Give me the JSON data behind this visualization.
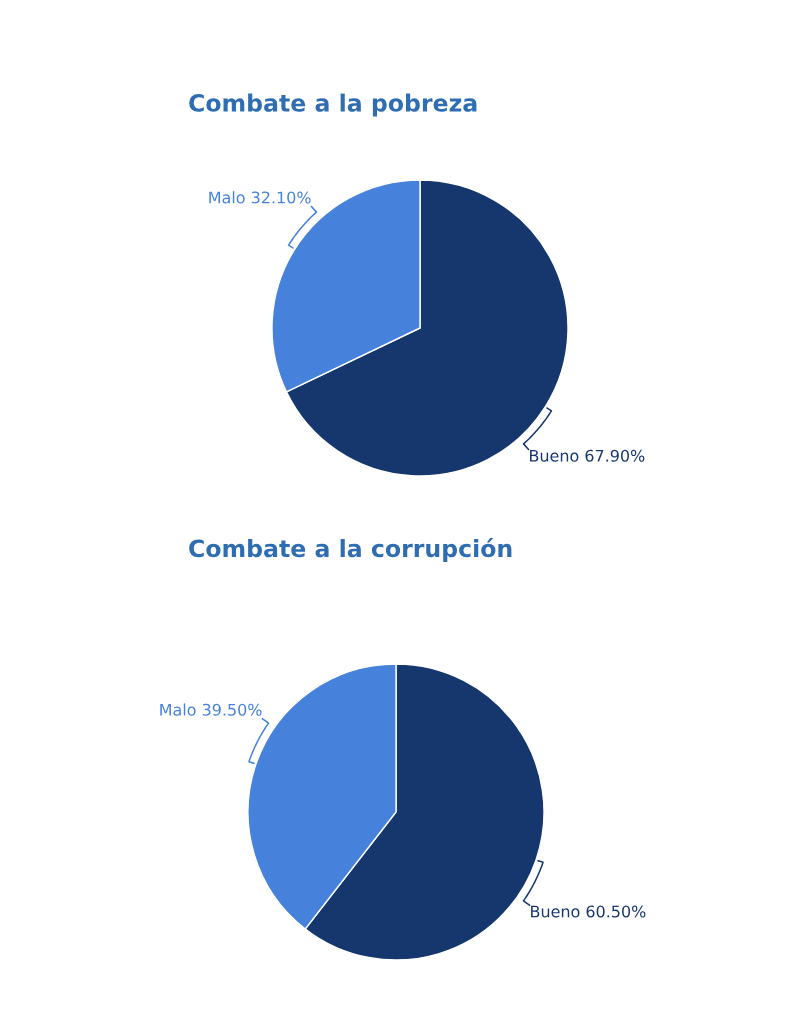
{
  "chart_data": [
    {
      "type": "pie",
      "title": "Combate a la pobreza",
      "categories": [
        "Bueno",
        "Malo"
      ],
      "values": [
        67.9,
        32.1
      ],
      "colors": [
        "#15376e",
        "#4682dc"
      ],
      "value_labels": [
        "67.90%",
        "32.10%"
      ]
    },
    {
      "type": "pie",
      "title": "Combate a la corrupción",
      "categories": [
        "Bueno",
        "Malo"
      ],
      "values": [
        60.5,
        39.5
      ],
      "colors": [
        "#15376e",
        "#4682dc"
      ],
      "value_labels": [
        "60.50%",
        "39.50%"
      ]
    }
  ]
}
